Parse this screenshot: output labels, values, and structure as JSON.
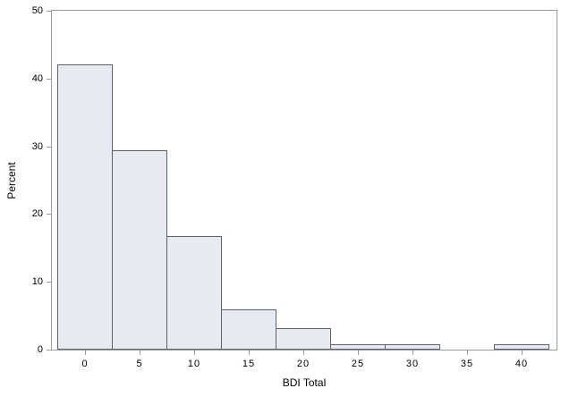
{
  "chart_data": {
    "type": "bar",
    "variant": "histogram",
    "title": "",
    "xlabel": "BDI Total",
    "ylabel": "Percent",
    "categories": [
      0,
      5,
      10,
      15,
      20,
      25,
      30,
      35,
      40
    ],
    "values": [
      42.1,
      29.4,
      16.7,
      5.9,
      3.2,
      0.8,
      0.8,
      0,
      0.8
    ],
    "bin_width": 5,
    "ylim": [
      0,
      50
    ],
    "yticks": [
      0,
      10,
      20,
      30,
      40,
      50
    ],
    "grid": false,
    "legend_position": "none",
    "colors": {
      "bar_fill": "#e6eaf2",
      "bar_border": "#5f646c",
      "axis_frame": "#9a9a9a",
      "tick_mark": "#9a9a9a",
      "text": "#000000",
      "background": "#ffffff"
    }
  }
}
